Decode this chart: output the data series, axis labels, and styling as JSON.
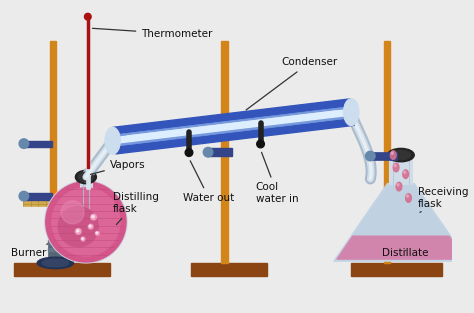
{
  "bg_color": "#ebebeb",
  "labels": {
    "thermometer": "Thermometer",
    "vapors": "Vapors",
    "distilling_flask": "Distilling\nflask",
    "water_out": "Water out",
    "condenser": "Condenser",
    "cool_water_in": "Cool\nwater in",
    "receiving_flask": "Receiving\nflask",
    "distillate": "Distillate",
    "burner": "Burner"
  },
  "colors": {
    "stand_rod": "#D4851A",
    "stand_base": "#8B4513",
    "flask_liquid": "#D4558A",
    "flask_glass": "#e0e8f0",
    "condenser_outer": "#3355BB",
    "condenser_inner": "#7799DD",
    "condenser_white": "#CCDDFF",
    "burner_flame_outer": "#FF7700",
    "burner_flame_inner": "#FFEE00",
    "thermometer_fluid": "#AA1111",
    "clamp": "#334488",
    "clamp_screw": "#6688AA",
    "wire_gauze": "#D4AA50",
    "burner_body": "#556677",
    "burner_base": "#223355",
    "drop_color": "#D47090",
    "tubing": "#222222",
    "text_color": "#111111",
    "stopper": "#111111",
    "glass_tube": "#BBCCDD",
    "glass_tube_inner": "#DDE8EE"
  },
  "font_size": 7.5
}
